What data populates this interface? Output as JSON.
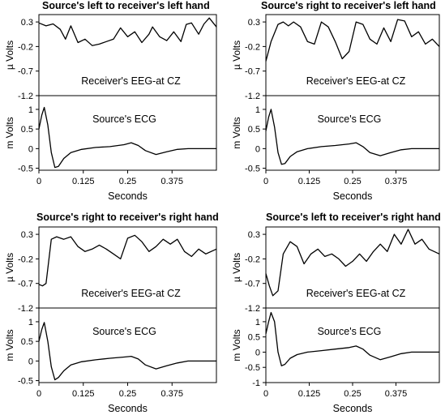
{
  "chart_data": [
    {
      "type": "line",
      "title": "Source's left to receiver's left hand",
      "x_label": "Seconds",
      "x_ticks": [
        "0",
        "0.125",
        "0.25",
        "0.375"
      ],
      "xlim": [
        0,
        0.5
      ],
      "eeg": {
        "label": "Receiver's EEG-at CZ",
        "ylabel": "µ Volts",
        "yticks": [
          "0.3",
          "-0.2",
          "-0.7",
          "-1.2"
        ],
        "ylim": [
          -1.2,
          0.45
        ],
        "x": [
          0,
          0.02,
          0.04,
          0.06,
          0.075,
          0.09,
          0.11,
          0.13,
          0.15,
          0.17,
          0.19,
          0.21,
          0.23,
          0.25,
          0.27,
          0.29,
          0.31,
          0.32,
          0.34,
          0.36,
          0.38,
          0.4,
          0.415,
          0.43,
          0.45,
          0.465,
          0.48,
          0.5
        ],
        "y": [
          0.28,
          0.22,
          0.26,
          0.15,
          -0.05,
          0.22,
          -0.12,
          -0.05,
          -0.18,
          -0.15,
          -0.1,
          -0.05,
          0.18,
          0.0,
          0.1,
          -0.12,
          0.05,
          0.2,
          0.0,
          -0.08,
          0.1,
          -0.1,
          0.25,
          0.28,
          0.05,
          0.26,
          0.38,
          0.2
        ]
      },
      "ecg": {
        "label": "Source's ECG",
        "ylabel": "m Volts",
        "yticks": [
          "1",
          "0.5",
          "0",
          "-0.5"
        ],
        "ylim": [
          -0.55,
          1.35
        ],
        "x": [
          0,
          0.008,
          0.015,
          0.025,
          0.035,
          0.045,
          0.055,
          0.07,
          0.09,
          0.12,
          0.16,
          0.2,
          0.24,
          0.26,
          0.28,
          0.3,
          0.33,
          0.36,
          0.39,
          0.42,
          0.45,
          0.5
        ],
        "y": [
          0.5,
          0.85,
          1.05,
          0.6,
          -0.1,
          -0.48,
          -0.45,
          -0.25,
          -0.1,
          -0.02,
          0.03,
          0.05,
          0.1,
          0.15,
          0.08,
          -0.05,
          -0.15,
          -0.08,
          -0.02,
          0.0,
          0.0,
          0.0
        ]
      }
    },
    {
      "type": "line",
      "title": "Source's right to receiver's left hand",
      "x_label": "Seconds",
      "x_ticks": [
        "0",
        "0.125",
        "0.25",
        "0.375"
      ],
      "xlim": [
        0,
        0.5
      ],
      "eeg": {
        "label": "Receiver's EEG-at CZ",
        "ylabel": "µ Volts",
        "yticks": [
          "0.3",
          "-0.2",
          "-0.7",
          "-1.2"
        ],
        "ylim": [
          -1.2,
          0.45
        ],
        "x": [
          0,
          0.015,
          0.035,
          0.05,
          0.065,
          0.08,
          0.1,
          0.12,
          0.14,
          0.16,
          0.18,
          0.2,
          0.22,
          0.24,
          0.26,
          0.28,
          0.3,
          0.32,
          0.34,
          0.36,
          0.38,
          0.4,
          0.42,
          0.44,
          0.46,
          0.48,
          0.5
        ],
        "y": [
          -0.5,
          -0.1,
          0.25,
          0.3,
          0.22,
          0.3,
          0.2,
          -0.1,
          -0.15,
          0.3,
          0.2,
          -0.1,
          -0.45,
          -0.3,
          0.3,
          0.25,
          -0.05,
          -0.15,
          0.18,
          -0.1,
          0.35,
          0.32,
          0.0,
          0.1,
          -0.15,
          -0.05,
          -0.2
        ]
      },
      "ecg": {
        "label": "Source's ECG",
        "ylabel": "m Volts",
        "yticks": [
          "1",
          "0.5",
          "0",
          "-0.5"
        ],
        "ylim": [
          -0.55,
          1.35
        ],
        "x": [
          0,
          0.008,
          0.015,
          0.025,
          0.035,
          0.045,
          0.055,
          0.07,
          0.09,
          0.12,
          0.16,
          0.2,
          0.24,
          0.26,
          0.28,
          0.3,
          0.33,
          0.36,
          0.39,
          0.42,
          0.45,
          0.5
        ],
        "y": [
          0.45,
          0.8,
          1.0,
          0.55,
          -0.1,
          -0.4,
          -0.38,
          -0.2,
          -0.08,
          0.0,
          0.05,
          0.08,
          0.12,
          0.15,
          0.05,
          -0.1,
          -0.18,
          -0.1,
          -0.03,
          0.0,
          0.0,
          0.0
        ]
      }
    },
    {
      "type": "line",
      "title": "Source's right to receiver's right hand",
      "x_label": "Seconds",
      "x_ticks": [
        "0",
        "0.125",
        "0.25",
        "0.375"
      ],
      "xlim": [
        0,
        0.5
      ],
      "eeg": {
        "label": "Receiver's EEG-at CZ",
        "ylabel": "µ Volts",
        "yticks": [
          "0.3",
          "-0.2",
          "-0.7",
          "-1.2"
        ],
        "ylim": [
          -1.2,
          0.45
        ],
        "x": [
          0,
          0.01,
          0.02,
          0.035,
          0.05,
          0.07,
          0.09,
          0.11,
          0.13,
          0.15,
          0.17,
          0.19,
          0.21,
          0.23,
          0.25,
          0.27,
          0.29,
          0.31,
          0.33,
          0.35,
          0.37,
          0.39,
          0.41,
          0.43,
          0.45,
          0.47,
          0.5
        ],
        "y": [
          -0.72,
          -0.75,
          -0.7,
          0.2,
          0.25,
          0.2,
          0.25,
          0.05,
          -0.05,
          0.0,
          0.08,
          0.0,
          -0.1,
          -0.2,
          0.22,
          0.28,
          0.15,
          -0.05,
          0.05,
          0.2,
          0.1,
          0.2,
          -0.05,
          -0.15,
          0.0,
          -0.1,
          0.0
        ]
      },
      "ecg": {
        "label": "Source's ECG",
        "ylabel": "m Volts",
        "yticks": [
          "1",
          "0.5",
          "0",
          "-0.5"
        ],
        "ylim": [
          -0.55,
          1.35
        ],
        "x": [
          0,
          0.008,
          0.015,
          0.025,
          0.035,
          0.045,
          0.055,
          0.07,
          0.09,
          0.12,
          0.16,
          0.2,
          0.24,
          0.26,
          0.28,
          0.3,
          0.33,
          0.36,
          0.39,
          0.42,
          0.45,
          0.5
        ],
        "y": [
          0.5,
          0.8,
          0.98,
          0.5,
          -0.15,
          -0.48,
          -0.42,
          -0.25,
          -0.1,
          -0.02,
          0.03,
          0.07,
          0.1,
          0.12,
          0.05,
          -0.1,
          -0.2,
          -0.12,
          -0.05,
          0.0,
          0.0,
          0.0
        ]
      }
    },
    {
      "type": "line",
      "title": "Source's left to receiver's right hand",
      "x_label": "Seconds",
      "x_ticks": [
        "0",
        "0.125",
        "0.25",
        "0.375"
      ],
      "xlim": [
        0,
        0.5
      ],
      "eeg": {
        "label": "Receiver's EEG-at CZ",
        "ylabel": "µ Volts",
        "yticks": [
          "0.3",
          "-0.2",
          "-0.7",
          "-1.2"
        ],
        "ylim": [
          -1.2,
          0.45
        ],
        "x": [
          0,
          0.01,
          0.02,
          0.035,
          0.05,
          0.07,
          0.09,
          0.11,
          0.13,
          0.15,
          0.17,
          0.19,
          0.21,
          0.23,
          0.25,
          0.27,
          0.29,
          0.31,
          0.33,
          0.35,
          0.37,
          0.39,
          0.41,
          0.43,
          0.45,
          0.47,
          0.5
        ],
        "y": [
          -0.5,
          -0.75,
          -0.95,
          -0.85,
          -0.1,
          0.15,
          0.05,
          -0.3,
          -0.1,
          0.0,
          -0.15,
          -0.1,
          -0.2,
          -0.35,
          -0.25,
          -0.1,
          -0.25,
          -0.05,
          0.1,
          -0.05,
          0.3,
          0.1,
          0.4,
          0.1,
          0.2,
          0.0,
          -0.1
        ]
      },
      "ecg": {
        "label": "Source's ECG",
        "ylabel": "m Volts",
        "yticks": [
          "1",
          "0.5",
          "0",
          "-0.5",
          "-1"
        ],
        "ylim": [
          -1.0,
          1.45
        ],
        "x": [
          0,
          0.008,
          0.015,
          0.025,
          0.035,
          0.045,
          0.055,
          0.07,
          0.09,
          0.12,
          0.16,
          0.2,
          0.24,
          0.26,
          0.28,
          0.3,
          0.33,
          0.36,
          0.39,
          0.42,
          0.45,
          0.5
        ],
        "y": [
          0.6,
          1.0,
          1.3,
          1.0,
          0.0,
          -0.45,
          -0.4,
          -0.2,
          -0.08,
          0.0,
          0.05,
          0.1,
          0.15,
          0.2,
          0.1,
          -0.1,
          -0.25,
          -0.15,
          -0.05,
          0.0,
          0.0,
          0.0
        ]
      }
    }
  ]
}
